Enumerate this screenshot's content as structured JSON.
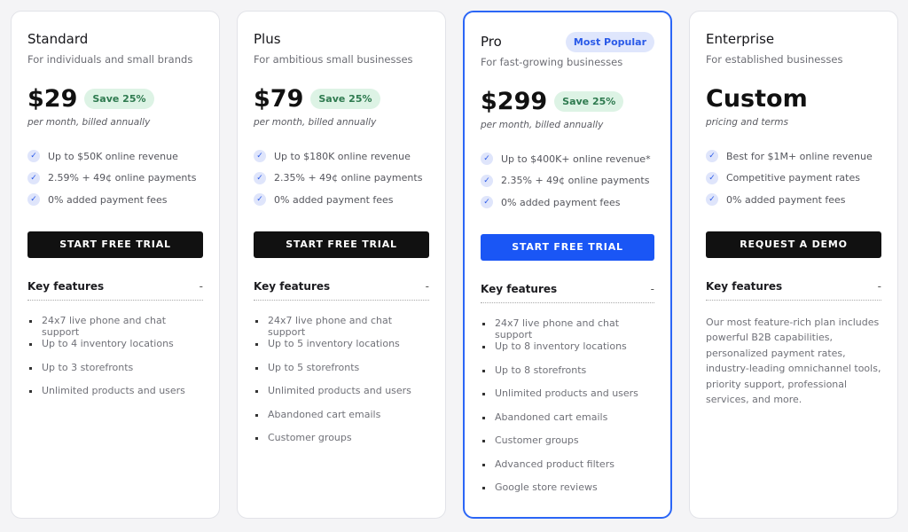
{
  "plans": [
    {
      "name": "Standard",
      "subtitle": "For individuals and small brands",
      "price": "$29",
      "save": "Save 25%",
      "period": "per month, billed annually",
      "checks": [
        "Up to $50K online revenue",
        "2.59% + 49¢ online payments",
        "0% added payment fees"
      ],
      "button": "START FREE TRIAL",
      "features_label": "Key features",
      "toggle": "-",
      "features": [
        "24x7 live phone and chat support",
        "Up to 4 inventory locations",
        "Up to 3 storefronts",
        "Unlimited products and users"
      ]
    },
    {
      "name": "Plus",
      "subtitle": "For ambitious small businesses",
      "price": "$79",
      "save": "Save 25%",
      "period": "per month, billed annually",
      "checks": [
        "Up to $180K online revenue",
        "2.35% + 49¢ online payments",
        "0% added payment fees"
      ],
      "button": "START FREE TRIAL",
      "features_label": "Key features",
      "toggle": "-",
      "features": [
        "24x7 live phone and chat support",
        "Up to 5 inventory locations",
        "Up to 5 storefronts",
        "Unlimited products and users",
        "Abandoned cart emails",
        "Customer groups"
      ]
    },
    {
      "name": "Pro",
      "badge": "Most Popular",
      "subtitle": "For fast-growing businesses",
      "price": "$299",
      "save": "Save 25%",
      "period": "per month, billed annually",
      "checks": [
        "Up to $400K+ online revenue*",
        "2.35% + 49¢ online payments",
        "0% added payment fees"
      ],
      "button": "START FREE TRIAL",
      "features_label": "Key features",
      "toggle": "-",
      "features": [
        "24x7 live phone and chat support",
        "Up to 8 inventory locations",
        "Up to 8 storefronts",
        "Unlimited products and users",
        "Abandoned cart emails",
        "Customer groups",
        "Advanced product filters",
        "Google store reviews"
      ]
    },
    {
      "name": "Enterprise",
      "subtitle": "For established businesses",
      "price": "Custom",
      "period": "pricing and terms",
      "checks": [
        "Best for $1M+ online revenue",
        "Competitive payment rates",
        "0% added payment fees"
      ],
      "button": "REQUEST A DEMO",
      "features_label": "Key features",
      "toggle": "-",
      "description": "Our most feature-rich plan includes powerful B2B capabilities, personalized payment rates, industry-leading omnichannel tools, priority support, professional services, and more."
    }
  ],
  "colors": {
    "accent": "#1a56f5",
    "dark_button": "#111111",
    "save_bg": "#ddf3e5",
    "badge_bg": "#dfe6fc"
  },
  "icons": {
    "check": "check-circle-icon"
  }
}
